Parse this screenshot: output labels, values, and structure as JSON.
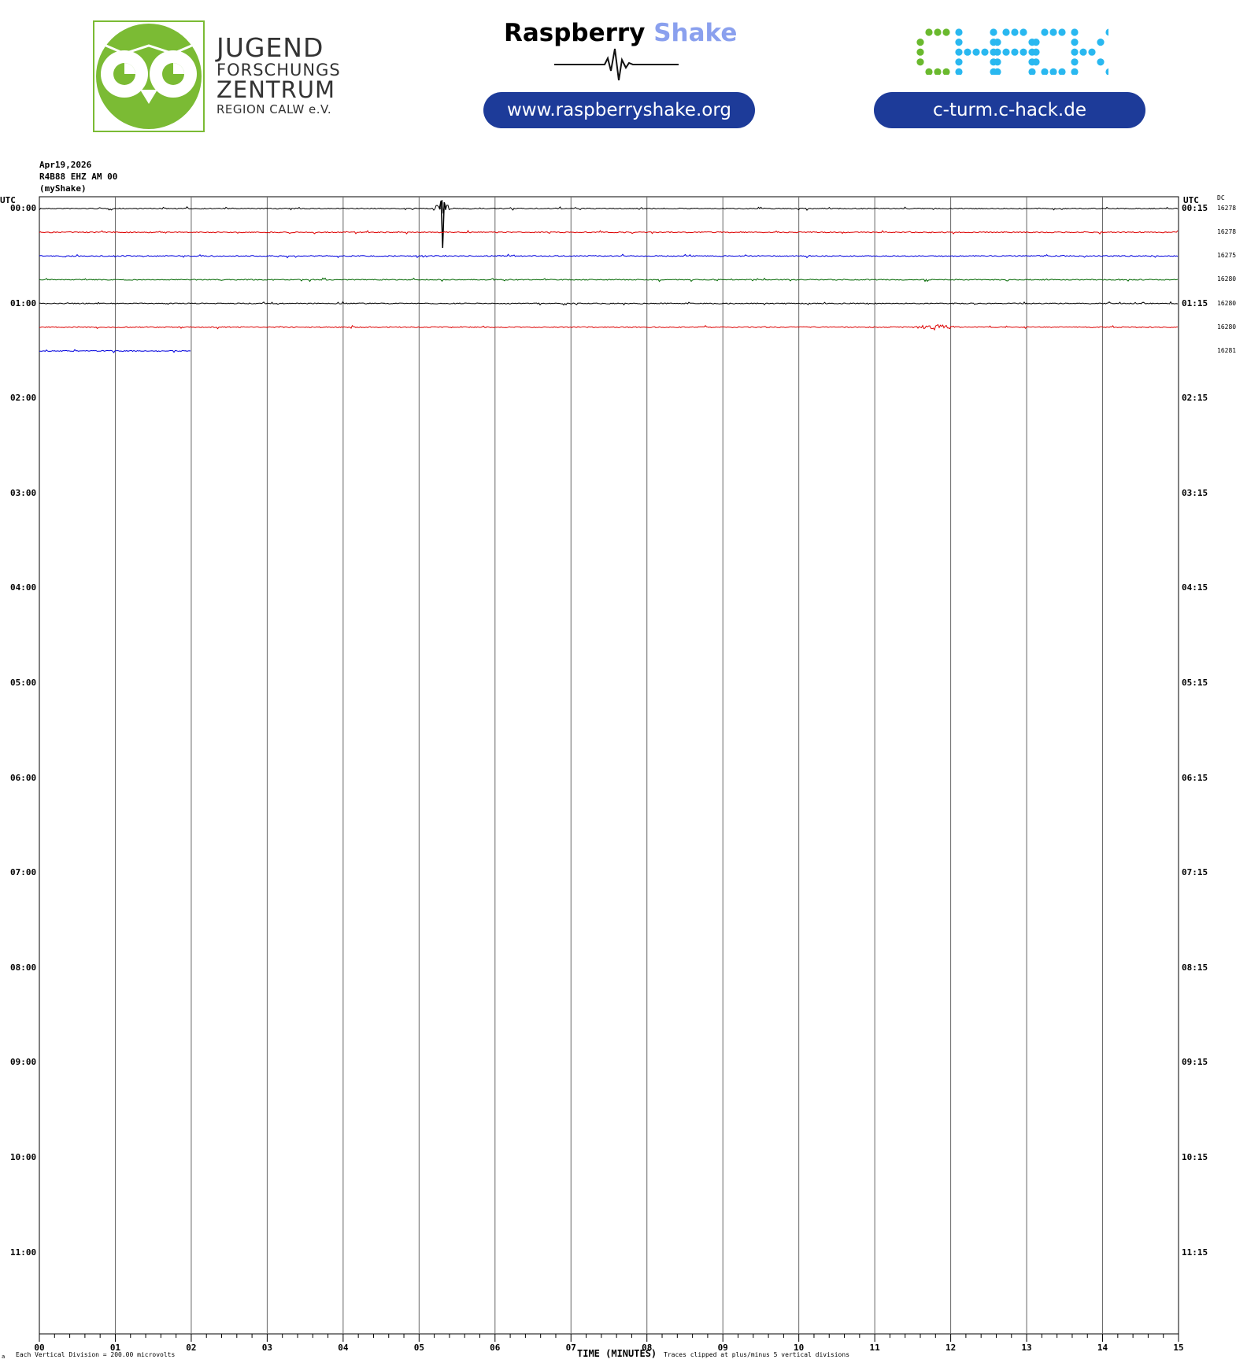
{
  "header": {
    "jfz": {
      "line1": "JUGEND",
      "line2": "FORSCHUNGS",
      "line3": "ZENTRUM",
      "line4": "REGION CALW e.V.",
      "logo_green": "#7bbb34"
    },
    "raspberry_shake": {
      "title_part1": "Raspberry",
      "title_part2": "Shake",
      "title_part2_color": "#8aa0ee",
      "url": "www.raspberryshake.org"
    },
    "chack": {
      "logo_text": "CHACK",
      "letter_colors": [
        "#6ab92e",
        "#29b8f0",
        "#29b8f0",
        "#29b8f0",
        "#29b8f0"
      ],
      "url": "c-turm.c-hack.de"
    },
    "pill_color": "#1d3b99"
  },
  "chart_data": {
    "type": "line",
    "title": "Apr19,2026",
    "station": "R4B88 EHZ AM 00",
    "source": "(myShake)",
    "left_axis_label": "UTC",
    "right_axis_label": "UTC",
    "dc_label": "DC",
    "xlabel": "TIME (MINUTES)",
    "x_ticks": [
      "00",
      "01",
      "02",
      "03",
      "04",
      "05",
      "06",
      "07",
      "08",
      "09",
      "10",
      "11",
      "12",
      "13",
      "14",
      "15"
    ],
    "xlim": [
      0,
      15
    ],
    "left_hour_labels": [
      "00:00",
      "01:00",
      "02:00",
      "03:00",
      "04:00",
      "05:00",
      "06:00",
      "07:00",
      "08:00",
      "09:00",
      "10:00",
      "11:00"
    ],
    "right_hour_labels": [
      "00:15",
      "01:15",
      "02:15",
      "03:15",
      "04:15",
      "05:15",
      "06:15",
      "07:15",
      "08:15",
      "09:15",
      "10:15",
      "11:15"
    ],
    "footer_left": "Each Vertical Division =  200.00 microvolts",
    "footer_right": "Traces clipped at plus/minus 5 vertical divisions",
    "corner_mark": "a",
    "trace_colors": [
      "#000000",
      "#dd0000",
      "#0000dd",
      "#006600"
    ],
    "traces": [
      {
        "row": 0,
        "color": "#000000",
        "end_minute": 15,
        "dc": "16278",
        "events": [
          {
            "minute": 5.3,
            "amplitude": "large"
          }
        ]
      },
      {
        "row": 1,
        "color": "#dd0000",
        "end_minute": 15,
        "dc": "16278",
        "events": []
      },
      {
        "row": 2,
        "color": "#0000dd",
        "end_minute": 15,
        "dc": "16275",
        "events": []
      },
      {
        "row": 3,
        "color": "#006600",
        "end_minute": 15,
        "dc": "16280",
        "events": []
      },
      {
        "row": 4,
        "color": "#000000",
        "end_minute": 15,
        "dc": "16280",
        "events": []
      },
      {
        "row": 5,
        "color": "#dd0000",
        "end_minute": 15,
        "dc": "16280",
        "events": [
          {
            "minute": 11.8,
            "amplitude": "small"
          }
        ]
      },
      {
        "row": 6,
        "color": "#0000dd",
        "end_minute": 2,
        "dc": "16281",
        "events": []
      }
    ]
  }
}
